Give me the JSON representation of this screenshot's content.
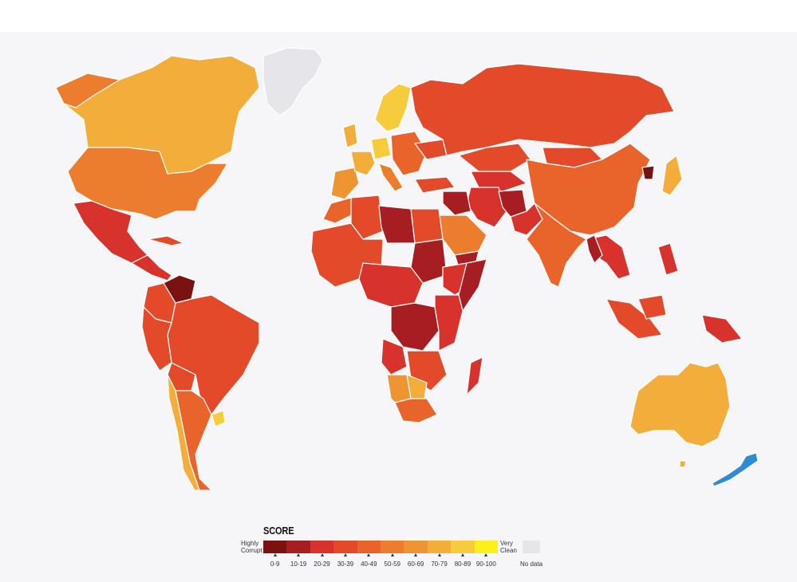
{
  "legend": {
    "title": "SCORE",
    "low_label_1": "Highly",
    "low_label_2": "Corrupt",
    "high_label_1": "Very",
    "high_label_2": "Clean",
    "no_data_label": "No data",
    "no_data_color": "#e5e5ea",
    "ranges": [
      {
        "label": "0-9",
        "color": "#7a1212"
      },
      {
        "label": "10-19",
        "color": "#a61e22"
      },
      {
        "label": "20-29",
        "color": "#d8322c"
      },
      {
        "label": "30-39",
        "color": "#e34a2a"
      },
      {
        "label": "40-49",
        "color": "#e8642b"
      },
      {
        "label": "50-59",
        "color": "#ec7d2e"
      },
      {
        "label": "60-69",
        "color": "#ef9433"
      },
      {
        "label": "70-79",
        "color": "#f2ad3b"
      },
      {
        "label": "80-89",
        "color": "#f6cb3c"
      },
      {
        "label": "90-100",
        "color": "#fbf01a"
      }
    ]
  },
  "highlight_color": "#2f8bd4"
}
